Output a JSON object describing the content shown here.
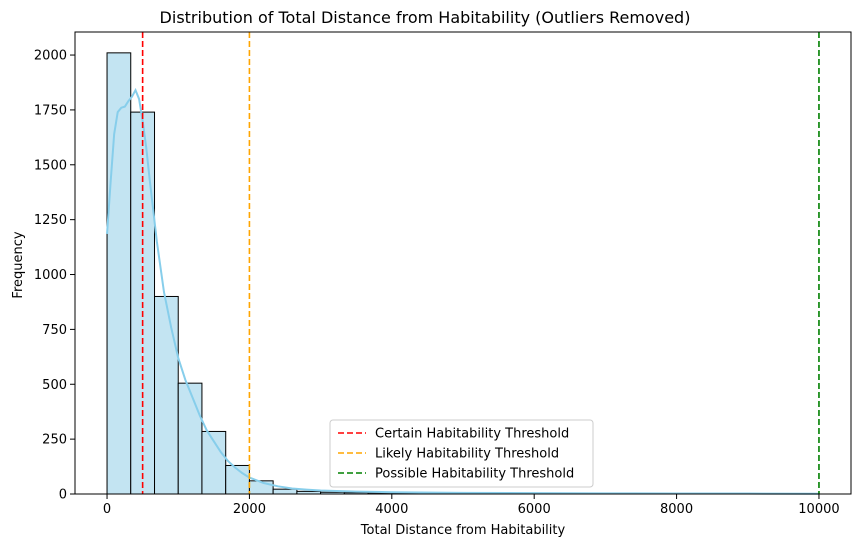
{
  "chart_data": {
    "type": "bar",
    "title": "Distribution of Total Distance from Habitability (Outliers Removed)",
    "xlabel": "Total Distance from Habitability",
    "ylabel": "Frequency",
    "xlim": [
      -450,
      10450
    ],
    "ylim": [
      0,
      2105
    ],
    "xticks": [
      0,
      2000,
      4000,
      6000,
      8000,
      10000
    ],
    "xtick_labels": [
      "0",
      "2000",
      "4000",
      "6000",
      "8000",
      "10000"
    ],
    "yticks": [
      0,
      250,
      500,
      750,
      1000,
      1250,
      1500,
      1750,
      2000
    ],
    "ytick_labels": [
      "0",
      "250",
      "500",
      "750",
      "1000",
      "1250",
      "1500",
      "1750",
      "2000"
    ],
    "bar_color": "#c3e4f2",
    "bar_edge_color": "#000000",
    "grid": false,
    "bins": [
      {
        "x0": 0,
        "x1": 333,
        "count": 2010
      },
      {
        "x0": 333,
        "x1": 667,
        "count": 1740
      },
      {
        "x0": 667,
        "x1": 1000,
        "count": 900
      },
      {
        "x0": 1000,
        "x1": 1333,
        "count": 505
      },
      {
        "x0": 1333,
        "x1": 1667,
        "count": 285
      },
      {
        "x0": 1667,
        "x1": 2000,
        "count": 130
      },
      {
        "x0": 2000,
        "x1": 2333,
        "count": 60
      },
      {
        "x0": 2333,
        "x1": 2667,
        "count": 22
      },
      {
        "x0": 2667,
        "x1": 3000,
        "count": 12
      },
      {
        "x0": 3000,
        "x1": 3333,
        "count": 8
      },
      {
        "x0": 3333,
        "x1": 3667,
        "count": 6
      },
      {
        "x0": 3667,
        "x1": 4000,
        "count": 5
      },
      {
        "x0": 4000,
        "x1": 4333,
        "count": 3
      },
      {
        "x0": 4333,
        "x1": 4667,
        "count": 2
      },
      {
        "x0": 4667,
        "x1": 5000,
        "count": 2
      },
      {
        "x0": 5000,
        "x1": 5333,
        "count": 1
      },
      {
        "x0": 5333,
        "x1": 5667,
        "count": 1
      },
      {
        "x0": 5667,
        "x1": 6000,
        "count": 1
      },
      {
        "x0": 6000,
        "x1": 6333,
        "count": 1
      },
      {
        "x0": 6333,
        "x1": 6667,
        "count": 1
      },
      {
        "x0": 6667,
        "x1": 7000,
        "count": 1
      },
      {
        "x0": 7000,
        "x1": 7333,
        "count": 1
      },
      {
        "x0": 7333,
        "x1": 7667,
        "count": 1
      },
      {
        "x0": 7667,
        "x1": 8000,
        "count": 1
      },
      {
        "x0": 8000,
        "x1": 8333,
        "count": 1
      },
      {
        "x0": 8333,
        "x1": 8667,
        "count": 1
      },
      {
        "x0": 8667,
        "x1": 9000,
        "count": 1
      },
      {
        "x0": 9000,
        "x1": 9333,
        "count": 1
      },
      {
        "x0": 9333,
        "x1": 9667,
        "count": 1
      },
      {
        "x0": 9667,
        "x1": 10000,
        "count": 1
      }
    ],
    "kde": {
      "color": "#87ceeb",
      "x": [
        0,
        50,
        100,
        150,
        200,
        250,
        300,
        350,
        400,
        450,
        500,
        550,
        600,
        700,
        800,
        900,
        1000,
        1100,
        1200,
        1300,
        1400,
        1500,
        1600,
        1700,
        1800,
        1900,
        2000,
        2200,
        2400,
        2600,
        2800,
        3000,
        3500,
        4000,
        5000,
        6000,
        7000,
        8000,
        9000,
        10000
      ],
      "y": [
        1185,
        1420,
        1640,
        1740,
        1760,
        1765,
        1790,
        1810,
        1840,
        1800,
        1700,
        1580,
        1430,
        1150,
        920,
        760,
        620,
        520,
        440,
        360,
        290,
        240,
        190,
        150,
        120,
        95,
        75,
        50,
        35,
        25,
        20,
        16,
        11,
        8,
        5,
        4,
        3,
        2,
        2,
        1
      ]
    },
    "thresholds": [
      {
        "label": "Certain Habitability Threshold",
        "x": 500,
        "color": "#ff0000"
      },
      {
        "label": "Likely Habitability Threshold",
        "x": 2000,
        "color": "#ffa500"
      },
      {
        "label": "Possible Habitability Threshold",
        "x": 10000,
        "color": "#008000"
      }
    ],
    "legend": "lower-center"
  }
}
